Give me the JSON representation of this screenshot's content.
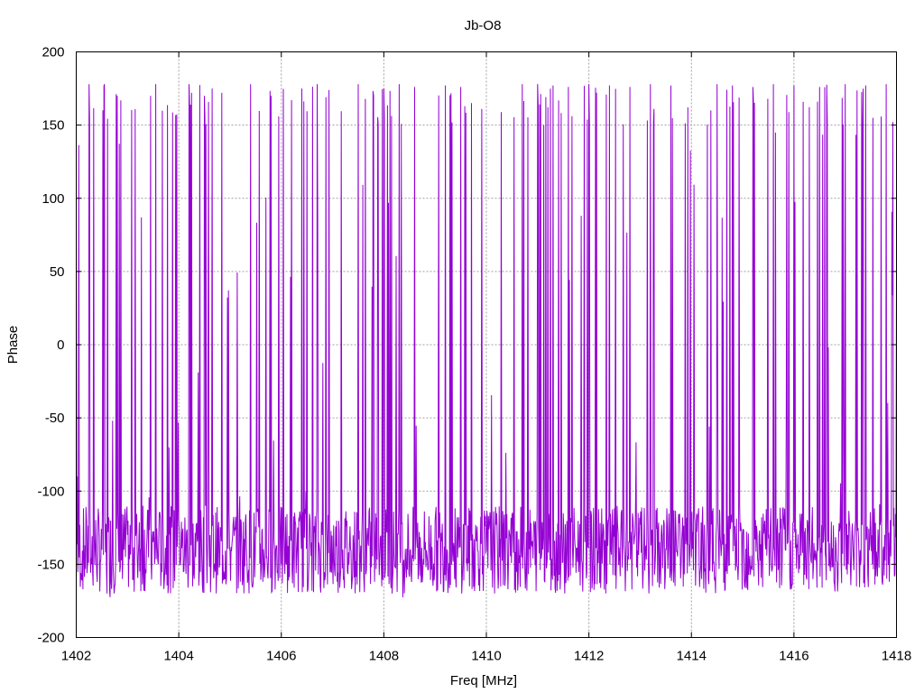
{
  "chart_data": {
    "type": "line",
    "title": "Jb-O8",
    "xlabel": "Freq [MHz]",
    "ylabel": "Phase",
    "xlim": [
      1402,
      1418
    ],
    "ylim": [
      -200,
      200
    ],
    "x_ticks": [
      1402,
      1404,
      1406,
      1408,
      1410,
      1412,
      1414,
      1416,
      1418
    ],
    "y_ticks": [
      -200,
      -150,
      -100,
      -50,
      0,
      50,
      100,
      150,
      200
    ],
    "grid": true,
    "legend": "none",
    "series_color": "#9400d3",
    "series": [
      {
        "description_values": "dense phase-vs-frequency trace; baseline near -140 with frequent wraps to ~+175",
        "x_step": 0.01,
        "x_start": 1402,
        "values_sample": [
          [
            1402.0,
            90
          ],
          [
            1402.02,
            -90
          ],
          [
            1402.1,
            -160
          ],
          [
            1402.2,
            -120
          ],
          [
            1402.25,
            178
          ],
          [
            1402.3,
            -150
          ],
          [
            1402.5,
            -140
          ],
          [
            1402.55,
            178
          ],
          [
            1402.6,
            -170
          ],
          [
            1402.8,
            170
          ],
          [
            1402.9,
            -160
          ],
          [
            1403.0,
            -130
          ],
          [
            1403.3,
            -110
          ],
          [
            1403.45,
            170
          ],
          [
            1403.55,
            178
          ],
          [
            1403.6,
            -150
          ],
          [
            1404.0,
            -120
          ],
          [
            1404.2,
            178
          ],
          [
            1404.3,
            -160
          ],
          [
            1404.5,
            170
          ],
          [
            1404.65,
            175
          ],
          [
            1404.8,
            -150
          ],
          [
            1405.0,
            -140
          ],
          [
            1405.3,
            -120
          ],
          [
            1405.4,
            178
          ],
          [
            1405.8,
            170
          ],
          [
            1406.0,
            -150
          ],
          [
            1406.4,
            175
          ],
          [
            1406.7,
            178
          ],
          [
            1406.8,
            -130
          ],
          [
            1407.0,
            -150
          ],
          [
            1407.2,
            -140
          ],
          [
            1407.5,
            178
          ],
          [
            1407.8,
            170
          ],
          [
            1408.0,
            175
          ],
          [
            1408.3,
            178
          ],
          [
            1408.6,
            176
          ],
          [
            1408.8,
            -140
          ],
          [
            1409.0,
            -120
          ],
          [
            1409.2,
            177
          ],
          [
            1409.5,
            176
          ],
          [
            1409.8,
            -130
          ],
          [
            1410.0,
            -140
          ],
          [
            1410.3,
            -130
          ],
          [
            1410.7,
            178
          ],
          [
            1411.0,
            178
          ],
          [
            1411.3,
            177
          ],
          [
            1411.6,
            176
          ],
          [
            1412.0,
            178
          ],
          [
            1412.4,
            177
          ],
          [
            1412.8,
            176
          ],
          [
            1413.2,
            178
          ],
          [
            1413.6,
            177
          ],
          [
            1413.8,
            -150
          ],
          [
            1414.0,
            -145
          ],
          [
            1414.2,
            -160
          ],
          [
            1414.5,
            178
          ],
          [
            1414.8,
            177
          ],
          [
            1415.2,
            176
          ],
          [
            1415.6,
            178
          ],
          [
            1416.0,
            177
          ],
          [
            1416.5,
            176
          ],
          [
            1417.0,
            178
          ],
          [
            1417.4,
            177
          ],
          [
            1417.8,
            178
          ],
          [
            1418.0,
            50
          ]
        ]
      }
    ]
  }
}
